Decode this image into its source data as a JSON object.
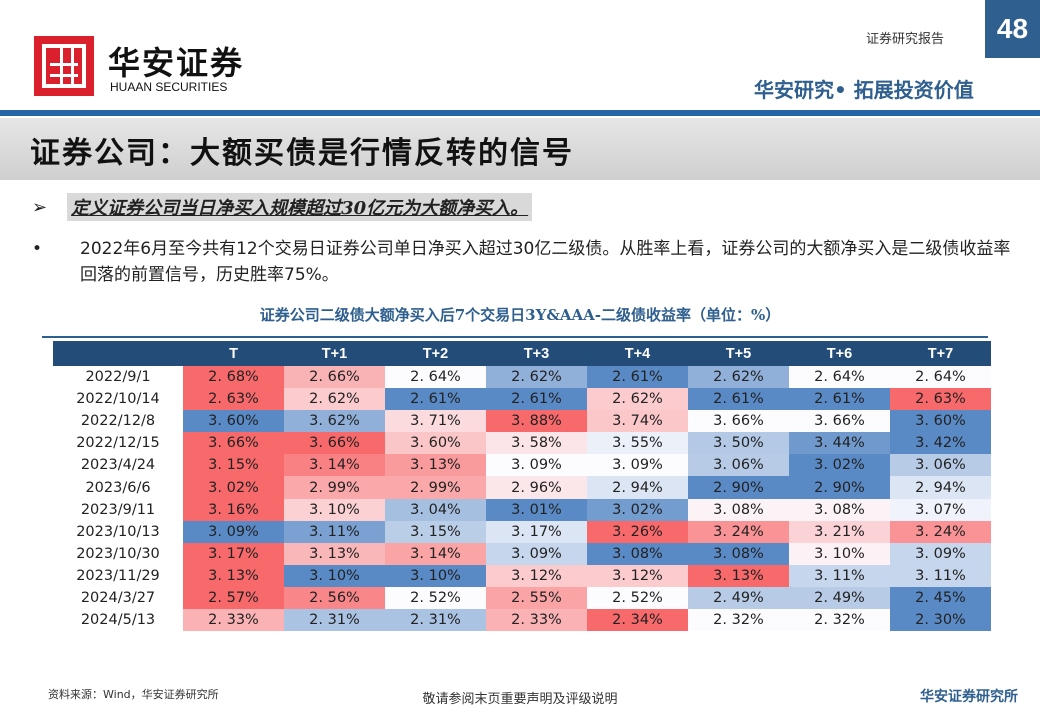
{
  "header": {
    "logo_cn": "华安证券",
    "logo_en": "HUAAN SECURITIES",
    "report_label": "证券研究报告",
    "page_number": "48",
    "slogan": "华安研究• 拓展投资价值"
  },
  "title": "证券公司：大额买债是行情反转的信号",
  "definition": "定义证券公司当日净买入规模超过30亿元为大额净买入。",
  "bullet": "2022年6月至今共有12个交易日证券公司单日净买入超过30亿二级债。从胜率上看，证券公司的大额净买入是二级债收益率回落的前置信号，历史胜率75%。",
  "chart_data": {
    "type": "heatmap",
    "title": "证券公司二级债大额净买入后7个交易日3Y&AAA-二级债收益率（单位：%）",
    "columns": [
      "T",
      "T+1",
      "T+2",
      "T+3",
      "T+4",
      "T+5",
      "T+6",
      "T+7"
    ],
    "rows": [
      "2022/9/1",
      "2022/10/14",
      "2022/12/8",
      "2022/12/15",
      "2023/4/24",
      "2023/6/6",
      "2023/9/11",
      "2023/10/13",
      "2023/10/30",
      "2023/11/29",
      "2024/3/27",
      "2024/5/13"
    ],
    "values": [
      [
        2.68,
        2.66,
        2.64,
        2.62,
        2.61,
        2.62,
        2.64,
        2.64
      ],
      [
        2.63,
        2.62,
        2.61,
        2.61,
        2.62,
        2.61,
        2.61,
        2.63
      ],
      [
        3.6,
        3.62,
        3.71,
        3.88,
        3.74,
        3.66,
        3.66,
        3.6
      ],
      [
        3.66,
        3.66,
        3.6,
        3.58,
        3.55,
        3.5,
        3.44,
        3.42
      ],
      [
        3.15,
        3.14,
        3.13,
        3.09,
        3.09,
        3.06,
        3.02,
        3.06
      ],
      [
        3.02,
        2.99,
        2.99,
        2.96,
        2.94,
        2.9,
        2.9,
        2.94
      ],
      [
        3.16,
        3.1,
        3.04,
        3.01,
        3.02,
        3.08,
        3.08,
        3.07
      ],
      [
        3.09,
        3.11,
        3.15,
        3.17,
        3.26,
        3.24,
        3.21,
        3.24
      ],
      [
        3.17,
        3.13,
        3.14,
        3.09,
        3.08,
        3.08,
        3.1,
        3.09
      ],
      [
        3.13,
        3.1,
        3.1,
        3.12,
        3.12,
        3.13,
        3.11,
        3.11
      ],
      [
        2.57,
        2.56,
        2.52,
        2.55,
        2.52,
        2.49,
        2.49,
        2.45
      ],
      [
        2.33,
        2.31,
        2.31,
        2.33,
        2.34,
        2.32,
        2.32,
        2.3
      ]
    ],
    "color_scale": "per-row, low=blue, median=white, high=red",
    "colors": {
      "high": "#f8696b",
      "mid": "#fcfcff",
      "low": "#5a8ac6",
      "header": "#234d78"
    }
  },
  "footer": {
    "source": "资料来源：Wind，华安证券研究所",
    "disclaimer": "敬请参阅末页重要声明及评级说明",
    "brand": "华安证券研究所"
  }
}
